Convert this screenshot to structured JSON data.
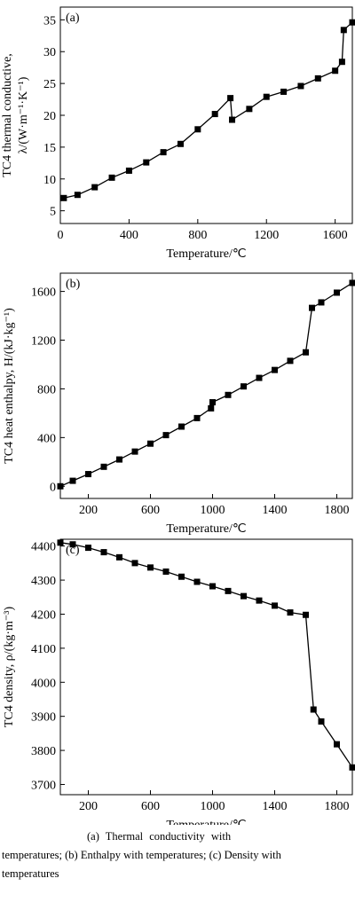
{
  "chart_data": [
    {
      "type": "line",
      "panel_label": "(a)",
      "xlabel": "Temperature/℃",
      "ylabel_line1": "TC4 thermal conductive,",
      "ylabel_line2": "λ/(W·m⁻¹·K⁻¹)",
      "xlim": [
        0,
        1700
      ],
      "ylim": [
        3,
        37
      ],
      "xticks": [
        0,
        400,
        800,
        1200,
        1600
      ],
      "yticks": [
        5,
        10,
        15,
        20,
        25,
        30,
        35
      ],
      "series": [
        {
          "x": [
            20,
            100,
            200,
            300,
            400,
            500,
            600,
            700,
            800,
            900,
            990,
            1000,
            1100,
            1200,
            1300,
            1400,
            1500,
            1600,
            1640,
            1650,
            1700
          ],
          "y": [
            7.0,
            7.5,
            8.7,
            10.2,
            11.3,
            12.6,
            14.2,
            15.5,
            17.8,
            20.2,
            22.7,
            19.3,
            21.0,
            22.9,
            23.7,
            24.6,
            25.8,
            27.0,
            28.4,
            33.4,
            34.6
          ]
        }
      ]
    },
    {
      "type": "line",
      "panel_label": "(b)",
      "xlabel": "Temperature/℃",
      "ylabel_line1": "TC4 heat enthalpy, H/(kJ·kg⁻¹)",
      "ylabel_line2": "",
      "xlim": [
        20,
        1900
      ],
      "ylim": [
        -100,
        1750
      ],
      "xticks": [
        200,
        600,
        1000,
        1400,
        1800
      ],
      "yticks": [
        0,
        400,
        800,
        1200,
        1600
      ],
      "series": [
        {
          "x": [
            20,
            100,
            200,
            300,
            400,
            500,
            600,
            700,
            800,
            900,
            990,
            1000,
            1100,
            1200,
            1300,
            1400,
            1500,
            1600,
            1640,
            1700,
            1800,
            1900
          ],
          "y": [
            0,
            45,
            100,
            160,
            220,
            285,
            350,
            420,
            490,
            560,
            640,
            690,
            750,
            820,
            890,
            955,
            1030,
            1100,
            1465,
            1510,
            1590,
            1670
          ]
        }
      ]
    },
    {
      "type": "line",
      "panel_label": "(c)",
      "xlabel": "Temperature/℃",
      "ylabel_line1": "TC4 density, ρ/(kg·m⁻³)",
      "ylabel_line2": "",
      "xlim": [
        20,
        1900
      ],
      "ylim": [
        3670,
        4420
      ],
      "xticks": [
        200,
        600,
        1000,
        1400,
        1800
      ],
      "yticks": [
        3700,
        3800,
        3900,
        4000,
        4100,
        4200,
        4300,
        4400
      ],
      "series": [
        {
          "x": [
            20,
            100,
            200,
            300,
            400,
            500,
            600,
            700,
            800,
            900,
            1000,
            1100,
            1200,
            1300,
            1400,
            1500,
            1600,
            1650,
            1700,
            1800,
            1900
          ],
          "y": [
            4410,
            4405,
            4395,
            4382,
            4367,
            4350,
            4337,
            4325,
            4310,
            4295,
            4282,
            4268,
            4253,
            4240,
            4225,
            4205,
            4198,
            3920,
            3885,
            3818,
            3750
          ]
        }
      ]
    }
  ],
  "caption": {
    "line1": "(a) Thermal conductivity with",
    "line2": "temperatures; (b) Enthalpy with temperatures; (c) Density with",
    "line3": "temperatures"
  }
}
